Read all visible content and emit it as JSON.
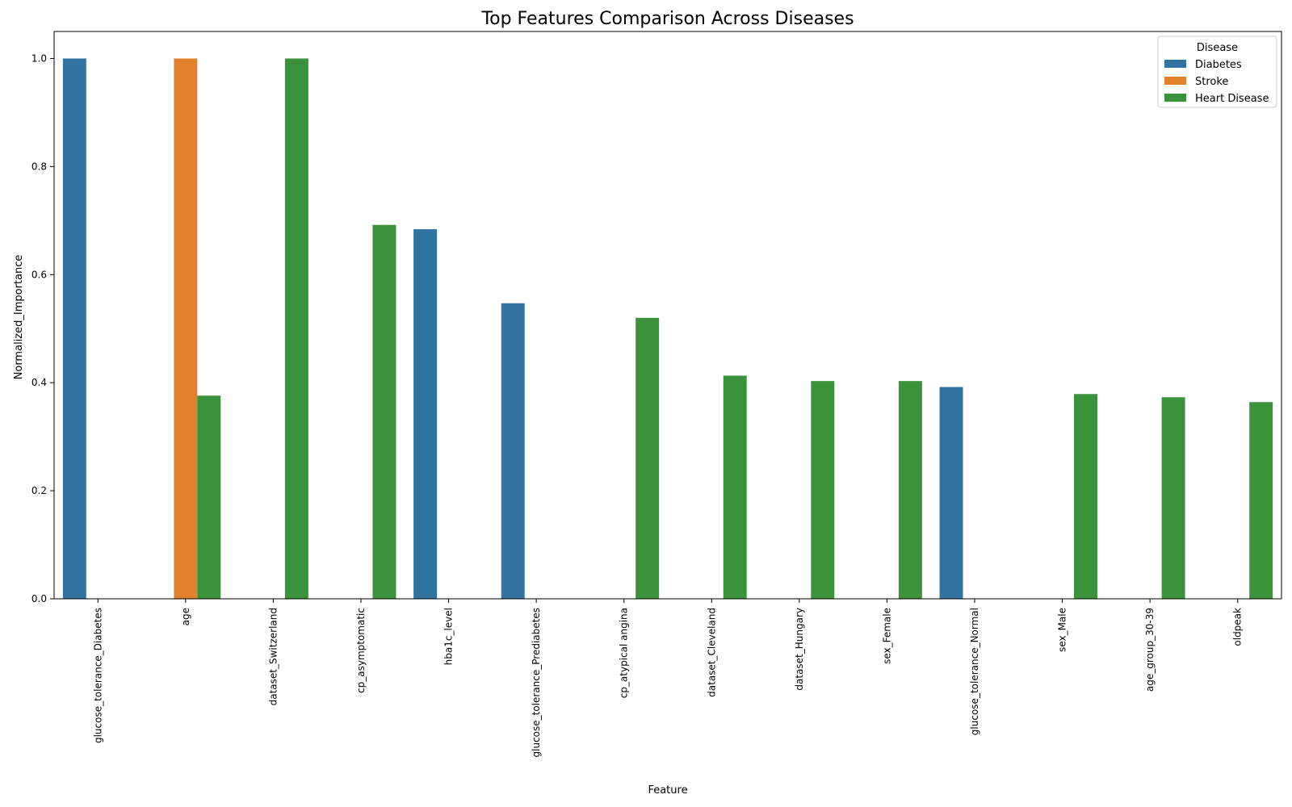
{
  "chart_data": {
    "type": "bar",
    "title": "Top Features Comparison Across Diseases",
    "xlabel": "Feature",
    "ylabel": "Normalized_Importance",
    "ylim": [
      0,
      1.05
    ],
    "yticks": [
      "0.0",
      "0.2",
      "0.4",
      "0.6",
      "0.8",
      "1.0"
    ],
    "grid": false,
    "legend": {
      "title": "Disease",
      "position": "top-right"
    },
    "categories": [
      "glucose_tolerance_Diabetes",
      "age",
      "dataset_Switzerland",
      "cp_asymptomatic",
      "hba1c_level",
      "glucose_tolerance_Prediabetes",
      "cp_atypical angina",
      "dataset_Cleveland",
      "dataset_Hungary",
      "sex_Female",
      "glucose_tolerance_Normal",
      "sex_Male",
      "age_group_30-39",
      "oldpeak"
    ],
    "series": [
      {
        "name": "Diabetes",
        "color": "#3274a1",
        "values": [
          1.0,
          null,
          null,
          null,
          0.684,
          0.547,
          null,
          null,
          null,
          null,
          0.392,
          null,
          null,
          null
        ]
      },
      {
        "name": "Stroke",
        "color": "#e1812c",
        "values": [
          null,
          1.0,
          null,
          null,
          null,
          null,
          null,
          null,
          null,
          null,
          null,
          null,
          null,
          null
        ]
      },
      {
        "name": "Heart Disease",
        "color": "#3a923a",
        "values": [
          null,
          0.376,
          1.0,
          0.692,
          null,
          null,
          0.52,
          0.413,
          0.403,
          0.403,
          null,
          0.379,
          0.373,
          0.364
        ]
      }
    ]
  }
}
